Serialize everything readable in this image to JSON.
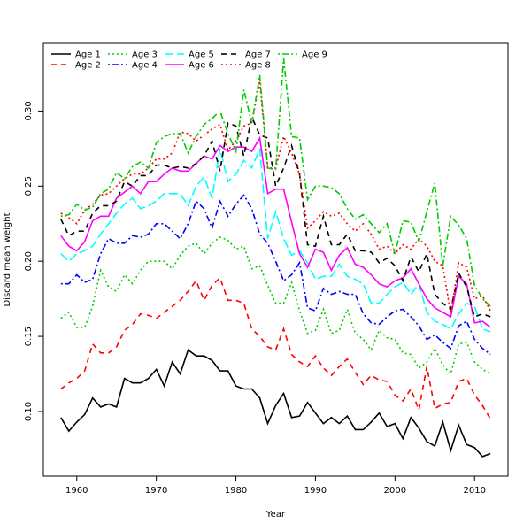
{
  "chart_data": {
    "type": "line",
    "title": "",
    "xlabel": "Year",
    "ylabel": "Discard mean weight",
    "xlim": [
      1955.8,
      2014.2
    ],
    "ylim": [
      0.057,
      0.345
    ],
    "xticks": [
      1960,
      1970,
      1980,
      1990,
      2000,
      2010
    ],
    "xtick_labels": [
      "1960",
      "1970",
      "1980",
      "1990",
      "2000",
      "2010"
    ],
    "yticks": [
      0.1,
      0.15,
      0.2,
      0.25,
      0.3
    ],
    "ytick_labels": [
      "0.10",
      "0.15",
      "0.20",
      "0.25",
      "0.30"
    ],
    "legend_position": "top-left",
    "x_start": 1958,
    "x_end": 2012,
    "series": [
      {
        "name": "Age 1",
        "color": "#000000",
        "dash": "solid",
        "values": [
          0.096,
          0.087,
          0.093,
          0.098,
          0.109,
          0.103,
          0.105,
          0.103,
          0.122,
          0.119,
          0.119,
          0.122,
          0.128,
          0.117,
          0.133,
          0.125,
          0.141,
          0.137,
          0.137,
          0.134,
          0.127,
          0.127,
          0.117,
          0.115,
          0.115,
          0.109,
          0.092,
          0.104,
          0.112,
          0.096,
          0.097,
          0.106,
          0.099,
          0.092,
          0.096,
          0.092,
          0.097,
          0.088,
          0.088,
          0.093,
          0.099,
          0.09,
          0.092,
          0.082,
          0.096,
          0.089,
          0.08,
          0.077,
          0.093,
          0.074,
          0.091,
          0.078,
          0.076,
          0.07,
          0.072
        ]
      },
      {
        "name": "Age 2",
        "color": "#FF0000",
        "dash": "dashed",
        "values": [
          0.115,
          0.119,
          0.122,
          0.127,
          0.145,
          0.139,
          0.139,
          0.143,
          0.154,
          0.158,
          0.165,
          0.164,
          0.162,
          0.166,
          0.17,
          0.174,
          0.18,
          0.187,
          0.174,
          0.184,
          0.189,
          0.174,
          0.174,
          0.172,
          0.155,
          0.15,
          0.143,
          0.141,
          0.155,
          0.138,
          0.133,
          0.13,
          0.137,
          0.129,
          0.124,
          0.13,
          0.135,
          0.126,
          0.118,
          0.124,
          0.121,
          0.12,
          0.111,
          0.107,
          0.115,
          0.101,
          0.13,
          0.102,
          0.105,
          0.106,
          0.12,
          0.122,
          0.111,
          0.104,
          0.095
        ]
      },
      {
        "name": "Age 3",
        "color": "#00CD00",
        "dash": "dotted",
        "values": [
          0.162,
          0.166,
          0.156,
          0.156,
          0.17,
          0.194,
          0.183,
          0.18,
          0.191,
          0.185,
          0.194,
          0.2,
          0.2,
          0.2,
          0.195,
          0.204,
          0.21,
          0.212,
          0.205,
          0.212,
          0.216,
          0.214,
          0.208,
          0.21,
          0.195,
          0.197,
          0.184,
          0.172,
          0.172,
          0.186,
          0.167,
          0.152,
          0.154,
          0.168,
          0.152,
          0.154,
          0.168,
          0.152,
          0.148,
          0.141,
          0.154,
          0.149,
          0.148,
          0.139,
          0.138,
          0.129,
          0.133,
          0.142,
          0.131,
          0.125,
          0.145,
          0.146,
          0.133,
          0.128,
          0.125
        ]
      },
      {
        "name": "Age 4",
        "color": "#0000FF",
        "dash": "dotdash",
        "values": [
          0.185,
          0.185,
          0.191,
          0.186,
          0.188,
          0.205,
          0.215,
          0.212,
          0.212,
          0.217,
          0.216,
          0.218,
          0.225,
          0.225,
          0.22,
          0.215,
          0.225,
          0.24,
          0.235,
          0.222,
          0.24,
          0.23,
          0.238,
          0.244,
          0.235,
          0.218,
          0.212,
          0.2,
          0.187,
          0.191,
          0.199,
          0.169,
          0.167,
          0.182,
          0.178,
          0.18,
          0.178,
          0.178,
          0.165,
          0.159,
          0.158,
          0.163,
          0.167,
          0.168,
          0.163,
          0.157,
          0.148,
          0.151,
          0.146,
          0.142,
          0.157,
          0.16,
          0.148,
          0.142,
          0.138
        ]
      },
      {
        "name": "Age 5",
        "color": "#00FFFF",
        "dash": "longdash",
        "values": [
          0.205,
          0.2,
          0.205,
          0.207,
          0.21,
          0.218,
          0.225,
          0.232,
          0.238,
          0.242,
          0.235,
          0.237,
          0.24,
          0.245,
          0.245,
          0.245,
          0.237,
          0.25,
          0.256,
          0.242,
          0.275,
          0.253,
          0.258,
          0.267,
          0.262,
          0.275,
          0.215,
          0.233,
          0.215,
          0.204,
          0.207,
          0.199,
          0.188,
          0.19,
          0.19,
          0.198,
          0.19,
          0.188,
          0.185,
          0.172,
          0.172,
          0.178,
          0.183,
          0.186,
          0.178,
          0.185,
          0.166,
          0.16,
          0.158,
          0.155,
          0.165,
          0.172,
          0.17,
          0.155,
          0.153
        ]
      },
      {
        "name": "Age 6",
        "color": "#FF00FF",
        "dash": "solid",
        "values": [
          0.217,
          0.21,
          0.207,
          0.213,
          0.227,
          0.23,
          0.23,
          0.242,
          0.246,
          0.25,
          0.245,
          0.253,
          0.253,
          0.258,
          0.262,
          0.26,
          0.26,
          0.265,
          0.27,
          0.268,
          0.277,
          0.273,
          0.276,
          0.276,
          0.273,
          0.282,
          0.245,
          0.248,
          0.248,
          0.226,
          0.205,
          0.196,
          0.208,
          0.206,
          0.194,
          0.204,
          0.209,
          0.198,
          0.196,
          0.191,
          0.185,
          0.183,
          0.187,
          0.189,
          0.195,
          0.185,
          0.175,
          0.169,
          0.166,
          0.163,
          0.19,
          0.185,
          0.159,
          0.16,
          0.156
        ]
      },
      {
        "name": "Age 7",
        "color": "#000000",
        "dash": "dashed",
        "values": [
          0.228,
          0.217,
          0.22,
          0.22,
          0.232,
          0.237,
          0.237,
          0.24,
          0.253,
          0.25,
          0.257,
          0.257,
          0.264,
          0.264,
          0.262,
          0.263,
          0.262,
          0.265,
          0.27,
          0.28,
          0.26,
          0.292,
          0.29,
          0.27,
          0.296,
          0.284,
          0.282,
          0.25,
          0.262,
          0.277,
          0.258,
          0.211,
          0.21,
          0.23,
          0.211,
          0.211,
          0.218,
          0.207,
          0.207,
          0.206,
          0.199,
          0.202,
          0.197,
          0.187,
          0.203,
          0.193,
          0.205,
          0.178,
          0.172,
          0.168,
          0.192,
          0.183,
          0.163,
          0.165,
          0.163
        ]
      },
      {
        "name": "Age 8",
        "color": "#FF0000",
        "dash": "dotted",
        "values": [
          0.232,
          0.229,
          0.225,
          0.234,
          0.238,
          0.244,
          0.245,
          0.25,
          0.255,
          0.258,
          0.258,
          0.262,
          0.268,
          0.268,
          0.272,
          0.286,
          0.285,
          0.28,
          0.284,
          0.288,
          0.291,
          0.274,
          0.28,
          0.29,
          0.292,
          0.32,
          0.262,
          0.262,
          0.283,
          0.272,
          0.258,
          0.222,
          0.227,
          0.233,
          0.23,
          0.232,
          0.225,
          0.22,
          0.225,
          0.218,
          0.208,
          0.21,
          0.205,
          0.211,
          0.208,
          0.215,
          0.21,
          0.2,
          0.197,
          0.165,
          0.199,
          0.196,
          0.175,
          0.177,
          0.167
        ]
      },
      {
        "name": "Age 9",
        "color": "#00CD00",
        "dash": "dotdash",
        "values": [
          0.23,
          0.231,
          0.238,
          0.234,
          0.236,
          0.245,
          0.248,
          0.259,
          0.255,
          0.263,
          0.266,
          0.262,
          0.279,
          0.283,
          0.285,
          0.285,
          0.272,
          0.283,
          0.291,
          0.295,
          0.3,
          0.285,
          0.273,
          0.314,
          0.292,
          0.324,
          0.262,
          0.261,
          0.335,
          0.283,
          0.282,
          0.241,
          0.25,
          0.25,
          0.249,
          0.245,
          0.235,
          0.228,
          0.231,
          0.225,
          0.219,
          0.225,
          0.205,
          0.227,
          0.226,
          0.213,
          0.233,
          0.252,
          0.197,
          0.23,
          0.224,
          0.215,
          0.184,
          0.175,
          0.17
        ]
      }
    ]
  }
}
